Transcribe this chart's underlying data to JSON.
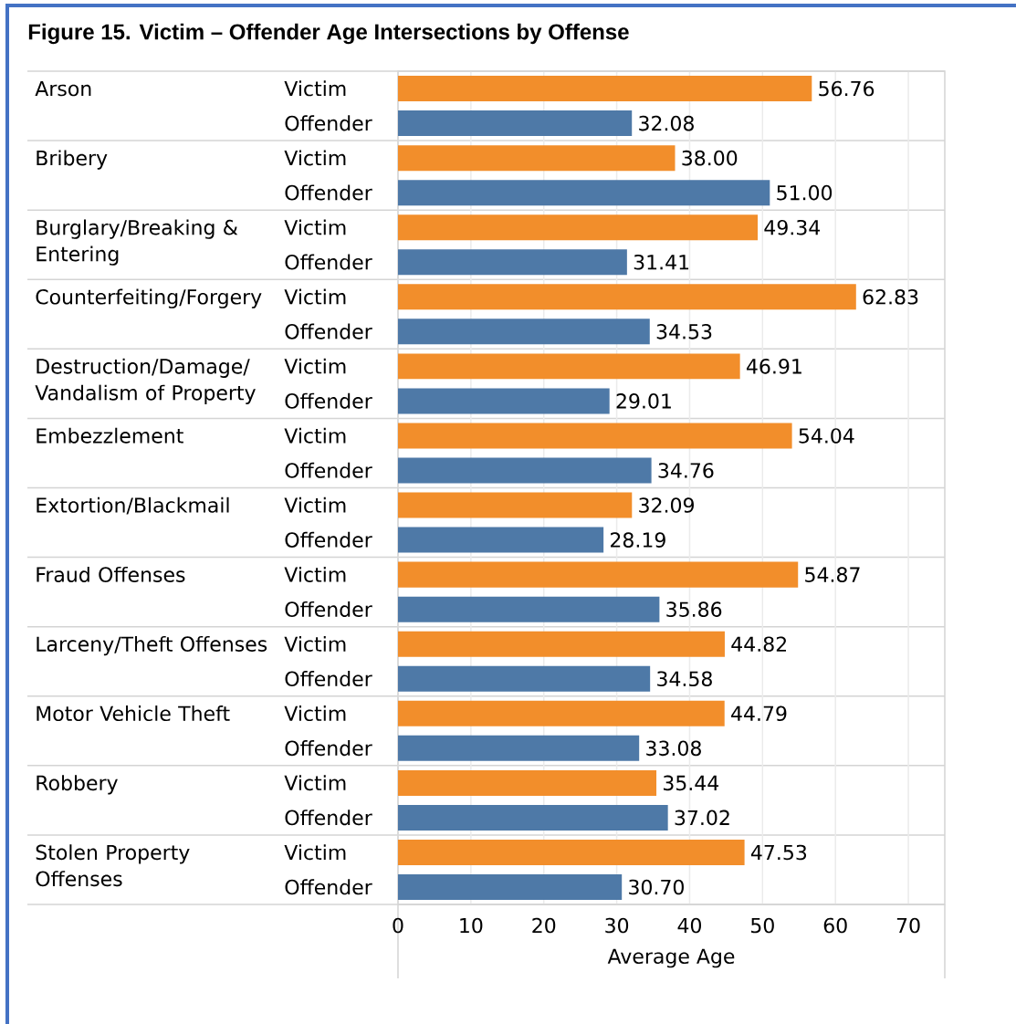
{
  "chart_data": {
    "type": "bar",
    "orientation": "horizontal",
    "title": "Figure 15. Victim – Offender Age Intersections by Offense",
    "categories": [
      "Arson",
      "Bribery",
      "Burglary/Breaking & Entering",
      "Counterfeiting/Forgery",
      "Destruction/Damage/ Vandalism of Property",
      "Embezzlement",
      "Extortion/Blackmail",
      "Fraud Offenses",
      "Larceny/Theft Offenses",
      "Motor Vehicle Theft",
      "Robbery",
      "Stolen Property Offenses"
    ],
    "series": [
      {
        "name": "Victim",
        "color": "#f28e2b",
        "values": [
          56.76,
          38.0,
          49.34,
          62.83,
          46.91,
          54.04,
          32.09,
          54.87,
          44.82,
          44.79,
          35.44,
          47.53
        ],
        "value_labels": [
          "56.76",
          "38.00",
          "49.34",
          "62.83",
          "46.91",
          "54.04",
          "32.09",
          "54.87",
          "44.82",
          "44.79",
          "35.44",
          "47.53"
        ]
      },
      {
        "name": "Offender",
        "color": "#4e79a7",
        "values": [
          32.08,
          51.0,
          31.41,
          34.53,
          29.01,
          34.76,
          28.19,
          35.86,
          34.58,
          33.08,
          37.02,
          30.7
        ],
        "value_labels": [
          "32.08",
          "51.00",
          "31.41",
          "34.53",
          "29.01",
          "34.76",
          "28.19",
          "35.86",
          "34.58",
          "33.08",
          "37.02",
          "30.70"
        ]
      }
    ],
    "xlabel": "Average Age",
    "xlim": [
      0,
      75
    ],
    "xticks": [
      0,
      10,
      20,
      30,
      40,
      50,
      60,
      70
    ],
    "grid": "x"
  }
}
